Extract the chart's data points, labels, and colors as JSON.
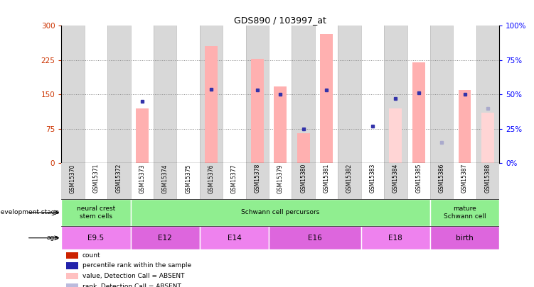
{
  "title": "GDS890 / 103997_at",
  "samples": [
    "GSM15370",
    "GSM15371",
    "GSM15372",
    "GSM15373",
    "GSM15374",
    "GSM15375",
    "GSM15376",
    "GSM15377",
    "GSM15378",
    "GSM15379",
    "GSM15380",
    "GSM15381",
    "GSM15382",
    "GSM15383",
    "GSM15384",
    "GSM15385",
    "GSM15386",
    "GSM15387",
    "GSM15388"
  ],
  "bar_values": [
    0,
    0,
    0,
    120,
    0,
    0,
    255,
    0,
    228,
    168,
    65,
    282,
    0,
    0,
    0,
    220,
    0,
    160,
    0
  ],
  "rank_values": [
    0,
    0,
    0,
    45,
    0,
    0,
    54,
    0,
    53,
    50,
    25,
    53,
    0,
    27,
    47,
    51,
    0,
    50,
    0
  ],
  "absent_bar_values": [
    0,
    0,
    0,
    0,
    0,
    0,
    0,
    0,
    0,
    0,
    0,
    0,
    0,
    0,
    120,
    0,
    0,
    0,
    110
  ],
  "absent_rank_values": [
    0,
    0,
    0,
    0,
    0,
    0,
    0,
    0,
    0,
    0,
    0,
    0,
    0,
    0,
    0,
    0,
    15,
    0,
    40
  ],
  "ylim_left": [
    0,
    300
  ],
  "ylim_right": [
    0,
    100
  ],
  "yticks_left": [
    0,
    75,
    150,
    225,
    300
  ],
  "yticks_right": [
    0,
    25,
    50,
    75,
    100
  ],
  "ytick_labels_left": [
    "0",
    "75",
    "150",
    "225",
    "300"
  ],
  "ytick_labels_right": [
    "0%",
    "25%",
    "50%",
    "75%",
    "100%"
  ],
  "bar_color": "#ffb0b0",
  "rank_color": "#3333aa",
  "absent_bar_color": "#ffd5d5",
  "absent_rank_color": "#aaaacc",
  "dev_stage_groups": [
    {
      "label": "neural crest\nstem cells",
      "start": 0,
      "end": 3,
      "color": "#90ee90"
    },
    {
      "label": "Schwann cell percursors",
      "start": 3,
      "end": 16,
      "color": "#90ee90"
    },
    {
      "label": "mature\nSchwann cell",
      "start": 16,
      "end": 19,
      "color": "#90ee90"
    }
  ],
  "age_groups": [
    {
      "label": "E9.5",
      "start": 0,
      "end": 3,
      "color": "#ee82ee"
    },
    {
      "label": "E12",
      "start": 3,
      "end": 6,
      "color": "#dd66dd"
    },
    {
      "label": "E14",
      "start": 6,
      "end": 9,
      "color": "#ee82ee"
    },
    {
      "label": "E16",
      "start": 9,
      "end": 13,
      "color": "#dd66dd"
    },
    {
      "label": "E18",
      "start": 13,
      "end": 16,
      "color": "#ee82ee"
    },
    {
      "label": "birth",
      "start": 16,
      "end": 19,
      "color": "#dd66dd"
    }
  ],
  "legend_items": [
    {
      "label": "count",
      "color": "#cc2200"
    },
    {
      "label": "percentile rank within the sample",
      "color": "#2222aa"
    },
    {
      "label": "value, Detection Call = ABSENT",
      "color": "#ffc0c0"
    },
    {
      "label": "rank, Detection Call = ABSENT",
      "color": "#bbbbdd"
    }
  ],
  "col_bg_even": "#d8d8d8",
  "col_bg_odd": "#ffffff"
}
